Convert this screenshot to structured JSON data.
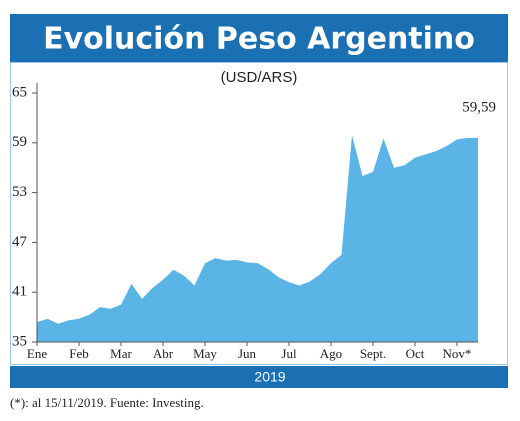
{
  "chart_data": {
    "type": "area",
    "title": "Evolución Peso Argentino",
    "subtitle": "(USD/ARS)",
    "x_label": "2019",
    "footnote": "(*): al 15/11/2019. Fuente: Investing.",
    "categories": [
      "Ene",
      null,
      null,
      null,
      "Feb",
      null,
      null,
      null,
      "Mar",
      null,
      null,
      null,
      "Abr",
      null,
      null,
      null,
      "May",
      null,
      null,
      null,
      "Jun",
      null,
      null,
      null,
      "Jul",
      null,
      null,
      null,
      "Ago",
      null,
      null,
      null,
      "Sept.",
      null,
      null,
      null,
      "Oct",
      null,
      null,
      null,
      "Nov*",
      null,
      null
    ],
    "values": [
      37.4,
      37.8,
      37.2,
      37.6,
      37.8,
      38.3,
      39.2,
      39.0,
      39.5,
      42.0,
      40.2,
      41.5,
      42.5,
      43.7,
      43.0,
      41.8,
      44.5,
      45.1,
      44.8,
      44.9,
      44.6,
      44.5,
      43.8,
      42.8,
      42.2,
      41.8,
      42.3,
      43.2,
      44.5,
      45.5,
      59.9,
      55.0,
      55.5,
      59.5,
      56.0,
      56.3,
      57.2,
      57.6,
      58.0,
      58.6,
      59.4,
      59.6,
      59.59
    ],
    "value_labels": [
      null,
      null,
      null,
      null,
      null,
      null,
      null,
      null,
      null,
      null,
      null,
      null,
      null,
      null,
      null,
      null,
      null,
      null,
      null,
      null,
      null,
      null,
      null,
      null,
      null,
      null,
      null,
      null,
      null,
      null,
      null,
      null,
      null,
      null,
      null,
      null,
      null,
      null,
      null,
      null,
      null,
      null,
      "59,59"
    ],
    "color": "#5ab4e6",
    "ylim": [
      35,
      65
    ],
    "yticks": [
      35,
      41,
      47,
      53,
      59,
      65
    ]
  }
}
